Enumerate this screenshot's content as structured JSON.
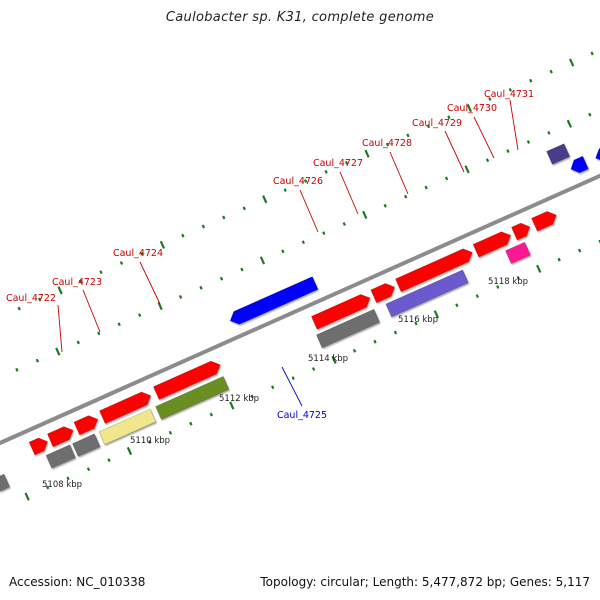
{
  "title": "Caulobacter sp. K31, complete genome",
  "footer": {
    "accession": "Accession: NC_010338",
    "summary": "Topology: circular; Length: 5,477,872 bp; Genes: 5,117"
  },
  "colors": {
    "backbone": "#8c8c8c",
    "tick": "#1f7a1f",
    "label_red": "#cc0000",
    "label_blue": "#0000cc",
    "cds_red": "#ff0000",
    "gray": "#6e6e6e",
    "olive": "#6b8e23",
    "khaki": "#f0e68c",
    "blue": "#0000ff",
    "slate": "#6a5acd",
    "magenta": "#ff1493",
    "darkslate": "#483d8b"
  },
  "kbp_labels": [
    "5108 kbp",
    "5110 kbp",
    "5112 kbp",
    "5114 kbp",
    "5116 kbp",
    "5118 kbp"
  ],
  "gene_labels": [
    {
      "text": "Caul_4722",
      "color": "red"
    },
    {
      "text": "Caul_4723",
      "color": "red"
    },
    {
      "text": "Caul_4724",
      "color": "red"
    },
    {
      "text": "Caul_4725",
      "color": "blue"
    },
    {
      "text": "Caul_4726",
      "color": "red"
    },
    {
      "text": "Caul_4727",
      "color": "red"
    },
    {
      "text": "Caul_4728",
      "color": "red"
    },
    {
      "text": "Caul_4729",
      "color": "red"
    },
    {
      "text": "Caul_4730",
      "color": "red"
    },
    {
      "text": "Caul_4731",
      "color": "red"
    }
  ]
}
